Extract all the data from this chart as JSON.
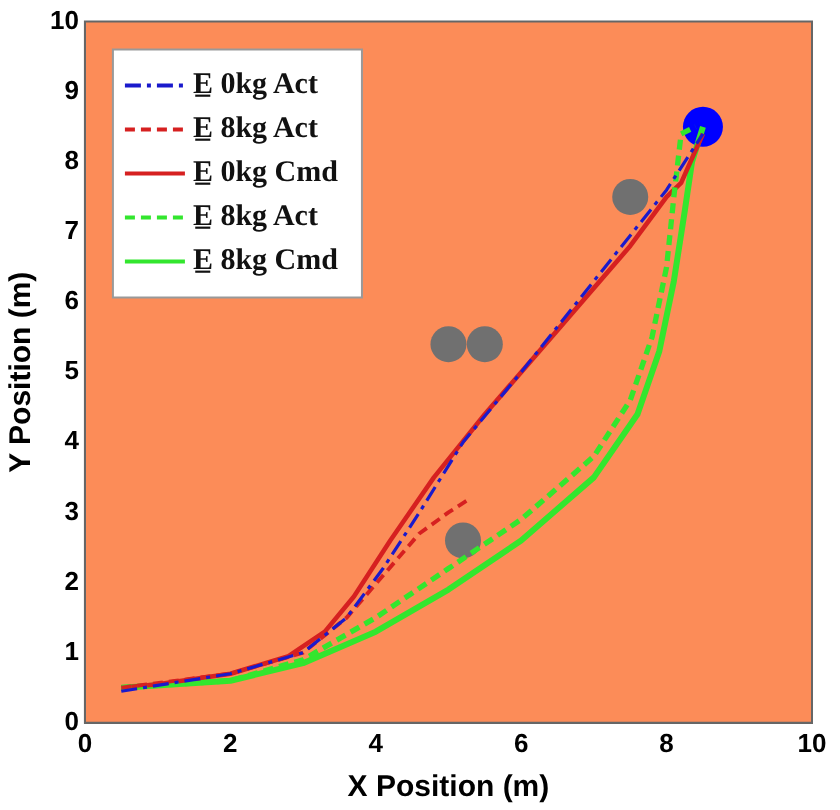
{
  "chart_data": {
    "type": "line",
    "xlabel": "X Position (m)",
    "ylabel": "Y Position (m)",
    "xlim": [
      0,
      10
    ],
    "ylim": [
      0,
      10
    ],
    "xticks": [
      0,
      2,
      4,
      6,
      8,
      10
    ],
    "yticks": [
      0,
      1,
      2,
      3,
      4,
      5,
      6,
      7,
      8,
      9,
      10
    ],
    "grid": false,
    "legend": "top left",
    "marker": "none",
    "series": [
      {
        "name": "E̲ 0kg Act",
        "color": "#1a1acc",
        "line_style": "dashdot",
        "x": [
          0.5,
          2,
          3,
          3.6,
          4.1,
          4.6,
          5.2,
          6,
          7,
          8,
          8.5
        ],
        "values": [
          0.45,
          0.7,
          1,
          1.5,
          2.2,
          3,
          4,
          5,
          6.3,
          7.6,
          8.4
        ]
      },
      {
        "name": "E̲ 8kg Act",
        "color": "#d62020",
        "line_style": "dashed",
        "x": [
          0.5,
          2,
          3,
          3.6,
          4.1,
          4.6,
          5,
          5.3
        ],
        "values": [
          0.5,
          0.7,
          1,
          1.5,
          2.1,
          2.7,
          3,
          3.2
        ]
      },
      {
        "name": "E̲ 0kg Cmd",
        "color": "#d62020",
        "line_style": "solid",
        "x": [
          0.5,
          1,
          2,
          2.8,
          3.3,
          3.7,
          4.2,
          4.8,
          5.5,
          6.5,
          7.5,
          8,
          8.2,
          8.5
        ],
        "values": [
          0.5,
          0.55,
          0.7,
          0.95,
          1.3,
          1.8,
          2.6,
          3.5,
          4.4,
          5.6,
          6.8,
          7.5,
          7.7,
          8.4
        ]
      },
      {
        "name": "E̲ 8kg Act",
        "color": "#33e62e",
        "line_style": "dashed",
        "x": [
          0.5,
          2,
          3,
          4,
          5,
          6,
          7,
          7.5,
          7.8,
          8,
          8.1,
          8.2,
          8.4
        ],
        "values": [
          0.5,
          0.6,
          0.9,
          1.5,
          2.2,
          2.9,
          3.8,
          4.6,
          5.5,
          6.5,
          7.5,
          8.4,
          8.5
        ]
      },
      {
        "name": "E̲ 8kg Cmd",
        "color": "#33e62e",
        "line_style": "solid",
        "x": [
          0.5,
          2,
          3,
          4,
          5,
          6,
          7,
          7.6,
          7.9,
          8.1,
          8.25,
          8.35,
          8.5
        ],
        "values": [
          0.5,
          0.6,
          0.85,
          1.3,
          1.9,
          2.6,
          3.5,
          4.4,
          5.3,
          6.3,
          7.3,
          8,
          8.5
        ]
      },
      {
        "type": "scatter",
        "marker": "circle",
        "color": "#707070",
        "x": [
          5,
          5.5,
          7.5,
          5.2
        ],
        "values": [
          5.4,
          5.4,
          7.5,
          2.6
        ]
      },
      {
        "type": "scatter",
        "marker": "circle",
        "color": "#0000ff",
        "x": [
          8.5
        ],
        "values": [
          8.5
        ]
      }
    ]
  }
}
